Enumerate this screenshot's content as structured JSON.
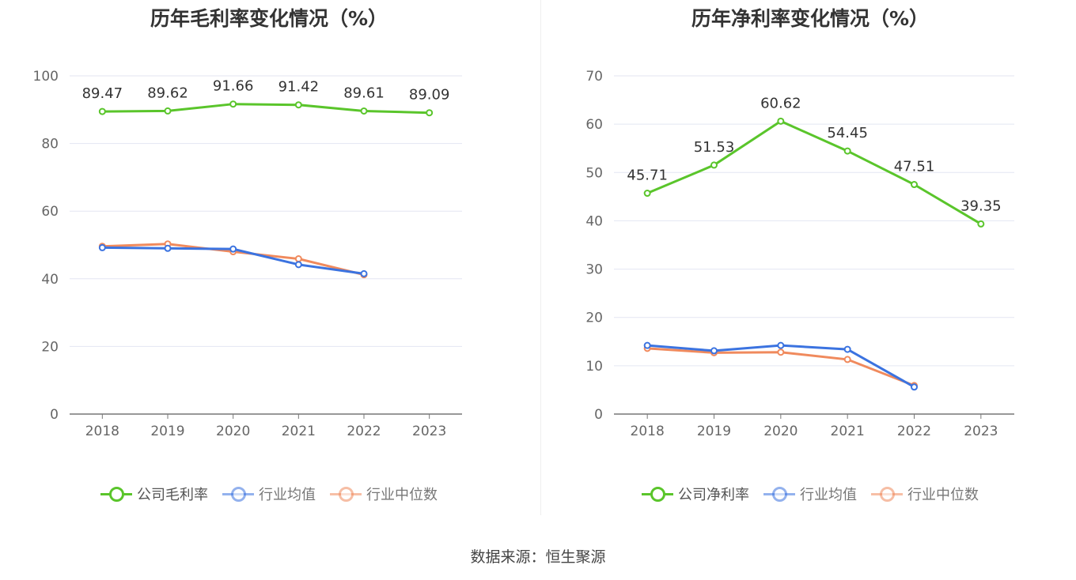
{
  "chart_data": [
    {
      "type": "line",
      "title": "历年毛利率变化情况（%）",
      "categories": [
        "2018",
        "2019",
        "2020",
        "2021",
        "2022",
        "2023"
      ],
      "ylim": [
        0,
        100
      ],
      "yticks": [
        0,
        20,
        40,
        60,
        80,
        100
      ],
      "grid": true,
      "legend_position": "bottom",
      "series": [
        {
          "name": "公司毛利率",
          "color": "#5ac52b",
          "values": [
            89.47,
            89.62,
            91.66,
            91.42,
            89.61,
            89.09
          ],
          "labels": [
            "89.47",
            "89.62",
            "91.66",
            "91.42",
            "89.61",
            "89.09"
          ]
        },
        {
          "name": "行业均值",
          "color": "#3b73e0",
          "values": [
            49.2,
            49.0,
            48.8,
            44.2,
            41.5,
            null
          ]
        },
        {
          "name": "行业中位数",
          "color": "#f08a5d",
          "values": [
            49.6,
            50.3,
            48.0,
            45.9,
            41.2,
            null
          ]
        }
      ]
    },
    {
      "type": "line",
      "title": "历年净利率变化情况（%）",
      "categories": [
        "2018",
        "2019",
        "2020",
        "2021",
        "2022",
        "2023"
      ],
      "ylim": [
        0,
        70
      ],
      "yticks": [
        0,
        10,
        20,
        30,
        40,
        50,
        60,
        70
      ],
      "grid": true,
      "legend_position": "bottom",
      "series": [
        {
          "name": "公司净利率",
          "color": "#5ac52b",
          "values": [
            45.71,
            51.53,
            60.62,
            54.45,
            47.51,
            39.35
          ],
          "labels": [
            "45.71",
            "51.53",
            "60.62",
            "54.45",
            "47.51",
            "39.35"
          ]
        },
        {
          "name": "行业均值",
          "color": "#3b73e0",
          "values": [
            14.2,
            13.1,
            14.2,
            13.4,
            5.6,
            null
          ]
        },
        {
          "name": "行业中位数",
          "color": "#f08a5d",
          "values": [
            13.6,
            12.7,
            12.8,
            11.3,
            5.9,
            null
          ]
        }
      ]
    }
  ],
  "source_text": "数据来源：恒生聚源"
}
